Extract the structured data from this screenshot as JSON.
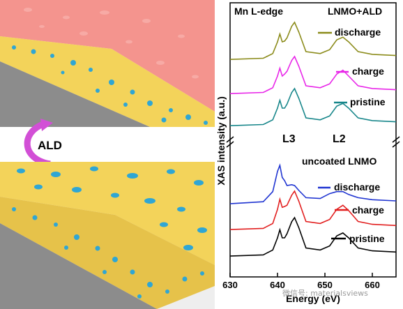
{
  "illustration": {
    "arrow_label": "ALD",
    "top_layer_color": "#f4948e",
    "electrode_color": "#f3d35a",
    "particle_color": "#2fa6d4",
    "substrate_color": "#8c8c8c",
    "arrow_color": "#d24fd6"
  },
  "chart_data": {
    "type": "line",
    "title": "Mn L-edge",
    "xlabel": "Energy (eV)",
    "ylabel": "XAS intensity (a.u.)",
    "xlim": [
      630,
      665
    ],
    "xticks": [
      "630",
      "640",
      "650",
      "660"
    ],
    "edge_labels": {
      "L3": "L3",
      "L2": "L2"
    },
    "panels": [
      {
        "name": "LNMO+ALD",
        "series": [
          {
            "name": "discharge",
            "color": "#8b8b1a",
            "x": [
              630,
              637,
              639,
              640,
              640.5,
              641,
              641.5,
              642,
              643,
              643.6,
              644.5,
              646,
              649,
              651,
              652.5,
              653.8,
              655,
              657,
              660,
              665
            ],
            "y": [
              0.05,
              0.08,
              0.2,
              0.5,
              0.7,
              0.5,
              0.52,
              0.6,
              0.9,
              1.0,
              0.75,
              0.25,
              0.2,
              0.3,
              0.55,
              0.62,
              0.5,
              0.25,
              0.18,
              0.15
            ]
          },
          {
            "name": "charge",
            "color": "#e825e8",
            "x": [
              630,
              637,
              639,
              640,
              640.5,
              641,
              641.5,
              642,
              643,
              643.6,
              644.5,
              646,
              649,
              651,
              652.5,
              653.8,
              655,
              657,
              660,
              665
            ],
            "y": [
              0.05,
              0.08,
              0.2,
              0.5,
              0.7,
              0.5,
              0.55,
              0.62,
              0.9,
              1.0,
              0.75,
              0.25,
              0.2,
              0.3,
              0.55,
              0.65,
              0.5,
              0.25,
              0.18,
              0.15
            ]
          },
          {
            "name": "pristine",
            "color": "#17868a",
            "x": [
              630,
              637,
              639,
              640,
              640.5,
              641,
              641.5,
              642,
              643,
              643.6,
              644.5,
              646,
              649,
              651,
              652.5,
              653.8,
              655,
              657,
              660,
              665
            ],
            "y": [
              0.05,
              0.08,
              0.2,
              0.5,
              0.7,
              0.5,
              0.5,
              0.6,
              0.9,
              1.0,
              0.75,
              0.25,
              0.2,
              0.3,
              0.55,
              0.62,
              0.5,
              0.25,
              0.18,
              0.15
            ]
          }
        ]
      },
      {
        "name": "uncoated LNMO",
        "series": [
          {
            "name": "discharge",
            "color": "#1f34d1",
            "x": [
              630,
              637,
              639,
              640,
              640.5,
              641,
              641.5,
              642,
              643,
              643.6,
              644.5,
              646,
              649,
              651,
              652.5,
              653.8,
              655,
              657,
              660,
              665
            ],
            "y": [
              0.05,
              0.1,
              0.35,
              0.85,
              1.0,
              0.7,
              0.62,
              0.5,
              0.52,
              0.5,
              0.38,
              0.2,
              0.18,
              0.3,
              0.35,
              0.35,
              0.28,
              0.2,
              0.15,
              0.12
            ]
          },
          {
            "name": "charge",
            "color": "#e21f1f",
            "x": [
              630,
              637,
              639,
              640,
              640.5,
              641,
              641.5,
              642,
              643,
              643.6,
              644.5,
              646,
              649,
              651,
              652.5,
              653.8,
              655,
              657,
              660,
              665
            ],
            "y": [
              0.05,
              0.08,
              0.2,
              0.55,
              0.8,
              0.6,
              0.62,
              0.65,
              0.9,
              1.0,
              0.75,
              0.25,
              0.2,
              0.3,
              0.55,
              0.65,
              0.52,
              0.25,
              0.18,
              0.15
            ]
          },
          {
            "name": "pristine",
            "color": "#000000",
            "x": [
              630,
              637,
              639,
              640,
              640.5,
              641,
              641.5,
              642,
              643,
              643.6,
              644.5,
              646,
              649,
              651,
              652.5,
              653.8,
              655,
              657,
              660,
              665
            ],
            "y": [
              0.05,
              0.08,
              0.2,
              0.5,
              0.7,
              0.5,
              0.5,
              0.6,
              0.9,
              1.0,
              0.75,
              0.25,
              0.2,
              0.3,
              0.55,
              0.62,
              0.5,
              0.25,
              0.18,
              0.15
            ]
          }
        ]
      }
    ]
  },
  "watermark": "微信号: materialsviews"
}
